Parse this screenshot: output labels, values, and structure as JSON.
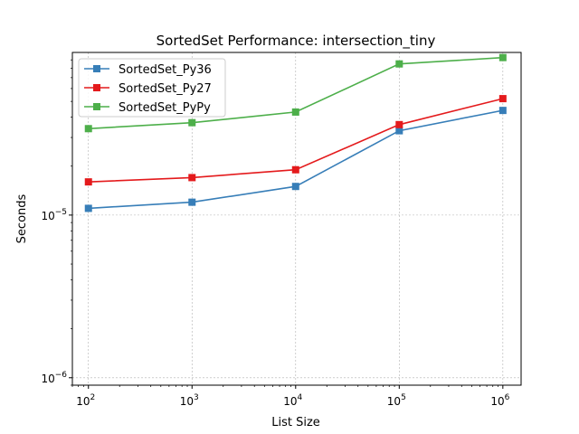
{
  "chart_data": {
    "type": "line",
    "title": "SortedSet Performance: intersection_tiny",
    "xlabel": "List Size",
    "ylabel": "Seconds",
    "xscale": "log",
    "yscale": "log",
    "xlim": [
      70,
      1500000
    ],
    "ylim": [
      9e-07,
      0.0001
    ],
    "x": [
      100,
      1000,
      10000,
      100000,
      1000000
    ],
    "xticks": [
      {
        "value": 100,
        "base": "10",
        "exp": "2"
      },
      {
        "value": 1000,
        "base": "10",
        "exp": "3"
      },
      {
        "value": 10000,
        "base": "10",
        "exp": "4"
      },
      {
        "value": 100000,
        "base": "10",
        "exp": "5"
      },
      {
        "value": 1000000,
        "base": "10",
        "exp": "6"
      }
    ],
    "yticks": [
      {
        "value": 1e-06,
        "base": "10",
        "exp": "−6"
      },
      {
        "value": 1e-05,
        "base": "10",
        "exp": "−5"
      }
    ],
    "grid": true,
    "legend_position": "upper-left",
    "series": [
      {
        "name": "SortedSet_Py36",
        "color": "#377eb8",
        "marker": "square",
        "values": [
          1.1e-05,
          1.2e-05,
          1.5e-05,
          3.3e-05,
          4.4e-05
        ]
      },
      {
        "name": "SortedSet_Py27",
        "color": "#e41a1c",
        "marker": "square",
        "values": [
          1.6e-05,
          1.7e-05,
          1.9e-05,
          3.6e-05,
          5.2e-05
        ]
      },
      {
        "name": "SortedSet_PyPy",
        "color": "#4daf4a",
        "marker": "square",
        "values": [
          3.4e-05,
          3.7e-05,
          4.3e-05,
          8.5e-05,
          9.3e-05
        ]
      }
    ]
  }
}
